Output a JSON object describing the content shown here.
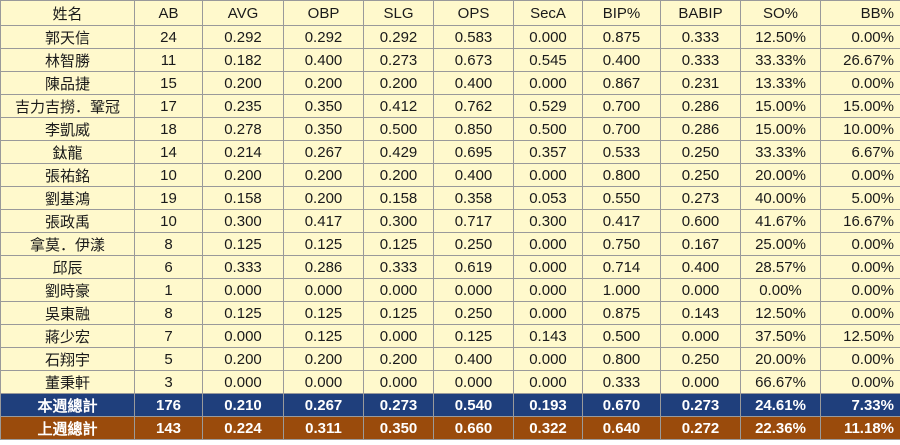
{
  "headers": [
    "姓名",
    "AB",
    "AVG",
    "OBP",
    "SLG",
    "OPS",
    "SecA",
    "BIP%",
    "BABIP",
    "SO%",
    "BB%"
  ],
  "rows": [
    [
      "郭天信",
      "24",
      "0.292",
      "0.292",
      "0.292",
      "0.583",
      "0.000",
      "0.875",
      "0.333",
      "12.50%",
      "0.00%"
    ],
    [
      "林智勝",
      "11",
      "0.182",
      "0.400",
      "0.273",
      "0.673",
      "0.545",
      "0.400",
      "0.333",
      "33.33%",
      "26.67%"
    ],
    [
      "陳品捷",
      "15",
      "0.200",
      "0.200",
      "0.200",
      "0.400",
      "0.000",
      "0.867",
      "0.231",
      "13.33%",
      "0.00%"
    ],
    [
      "吉力吉撈．鞏冠",
      "17",
      "0.235",
      "0.350",
      "0.412",
      "0.762",
      "0.529",
      "0.700",
      "0.286",
      "15.00%",
      "15.00%"
    ],
    [
      "李凱威",
      "18",
      "0.278",
      "0.350",
      "0.500",
      "0.850",
      "0.500",
      "0.700",
      "0.286",
      "15.00%",
      "10.00%"
    ],
    [
      "鈦龍",
      "14",
      "0.214",
      "0.267",
      "0.429",
      "0.695",
      "0.357",
      "0.533",
      "0.250",
      "33.33%",
      "6.67%"
    ],
    [
      "張祐銘",
      "10",
      "0.200",
      "0.200",
      "0.200",
      "0.400",
      "0.000",
      "0.800",
      "0.250",
      "20.00%",
      "0.00%"
    ],
    [
      "劉基鴻",
      "19",
      "0.158",
      "0.200",
      "0.158",
      "0.358",
      "0.053",
      "0.550",
      "0.273",
      "40.00%",
      "5.00%"
    ],
    [
      "張政禹",
      "10",
      "0.300",
      "0.417",
      "0.300",
      "0.717",
      "0.300",
      "0.417",
      "0.600",
      "41.67%",
      "16.67%"
    ],
    [
      "拿莫．伊漾",
      "8",
      "0.125",
      "0.125",
      "0.125",
      "0.250",
      "0.000",
      "0.750",
      "0.167",
      "25.00%",
      "0.00%"
    ],
    [
      "邱辰",
      "6",
      "0.333",
      "0.286",
      "0.333",
      "0.619",
      "0.000",
      "0.714",
      "0.400",
      "28.57%",
      "0.00%"
    ],
    [
      "劉時豪",
      "1",
      "0.000",
      "0.000",
      "0.000",
      "0.000",
      "0.000",
      "1.000",
      "0.000",
      "0.00%",
      "0.00%"
    ],
    [
      "吳東融",
      "8",
      "0.125",
      "0.125",
      "0.125",
      "0.250",
      "0.000",
      "0.875",
      "0.143",
      "12.50%",
      "0.00%"
    ],
    [
      "蔣少宏",
      "7",
      "0.000",
      "0.125",
      "0.000",
      "0.125",
      "0.143",
      "0.500",
      "0.000",
      "37.50%",
      "12.50%"
    ],
    [
      "石翔宇",
      "5",
      "0.200",
      "0.200",
      "0.200",
      "0.400",
      "0.000",
      "0.800",
      "0.250",
      "20.00%",
      "0.00%"
    ],
    [
      "董秉軒",
      "3",
      "0.000",
      "0.000",
      "0.000",
      "0.000",
      "0.000",
      "0.333",
      "0.000",
      "66.67%",
      "0.00%"
    ]
  ],
  "totals": [
    [
      "本週總計",
      "176",
      "0.210",
      "0.267",
      "0.273",
      "0.540",
      "0.193",
      "0.670",
      "0.273",
      "24.61%",
      "7.33%"
    ],
    [
      "上週總計",
      "143",
      "0.224",
      "0.311",
      "0.350",
      "0.660",
      "0.322",
      "0.640",
      "0.272",
      "22.36%",
      "11.18%"
    ]
  ],
  "colors": {
    "row_background": "#fff9cc",
    "this_week_background": "#1f3f7c",
    "last_week_background": "#9a4b0c",
    "grid_line": "#9a9a9a"
  }
}
